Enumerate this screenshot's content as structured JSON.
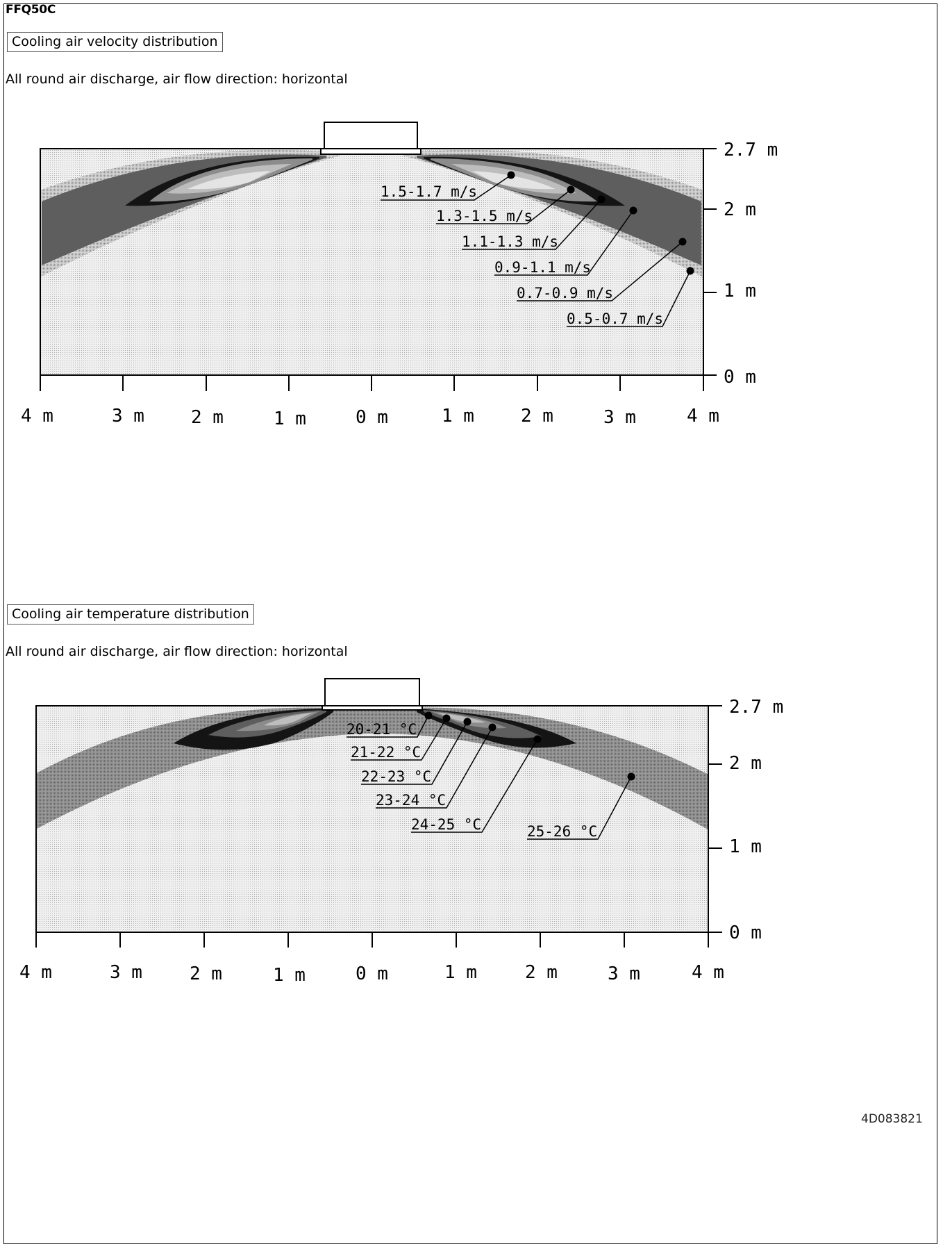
{
  "model": "FFQ50C",
  "velocity": {
    "title": "Cooling air velocity distribution",
    "subtitle": "All round air discharge, air flow direction: horizontal",
    "x_ticks": [
      "4 m",
      "3 m",
      "2 m",
      "1 m",
      "0 m",
      "1 m",
      "2 m",
      "3 m",
      "4 m"
    ],
    "y_ticks": [
      "2.7 m",
      "2 m",
      "1 m",
      "0 m"
    ],
    "legend": [
      "1.5-1.7 m/s",
      "1.3-1.5 m/s",
      "1.1-1.3 m/s",
      "0.9-1.1 m/s",
      "0.7-0.9 m/s",
      "0.5-0.7 m/s"
    ]
  },
  "temperature": {
    "title": "Cooling air temperature distribution",
    "subtitle": "All round air discharge, air flow direction: horizontal",
    "x_ticks": [
      "4 m",
      "3 m",
      "2 m",
      "1 m",
      "0 m",
      "1 m",
      "2 m",
      "3 m",
      "4 m"
    ],
    "y_ticks": [
      "2.7 m",
      "2 m",
      "1 m",
      "0 m"
    ],
    "legend": [
      "20-21 °C",
      "21-22 °C",
      "22-23 °C",
      "23-24 °C",
      "24-25 °C",
      "25-26 °C"
    ]
  },
  "document_number": "4D083821",
  "colors": {
    "band_darkest": "#141414",
    "band_dark": "#5e5e5e",
    "band_mid": "#8c8c8c",
    "band_light": "#bdbdbd",
    "band_lightest": "#e4e4e4",
    "background": "#f3f3f3"
  }
}
